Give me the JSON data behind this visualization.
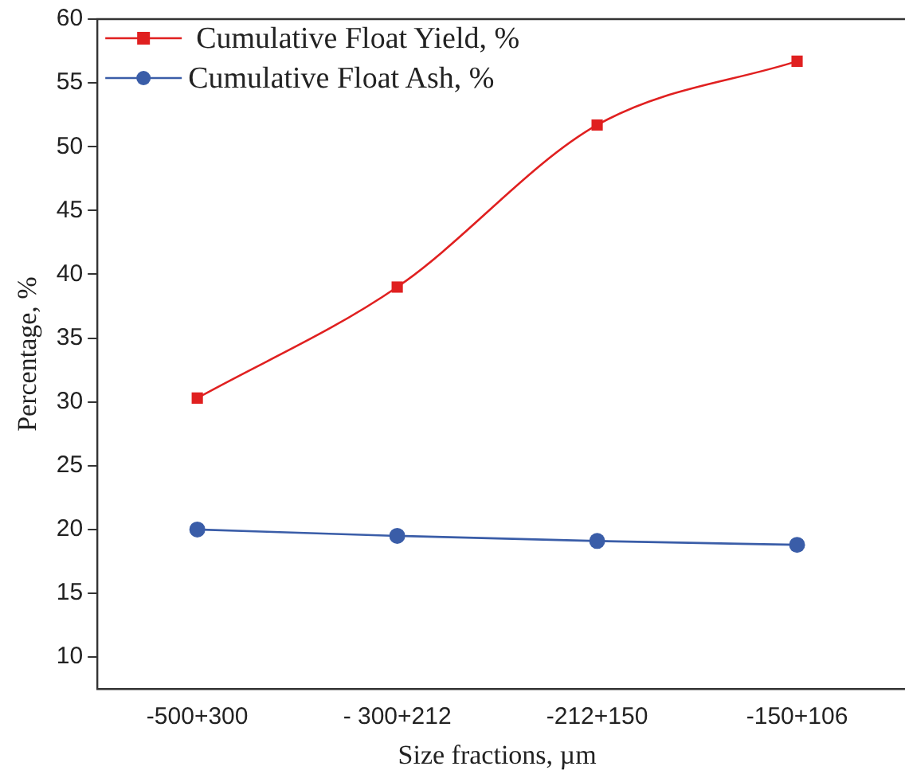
{
  "chart_data": {
    "type": "line",
    "xlabel": "Size fractions, µm",
    "ylabel": "Percentage, %",
    "categories": [
      "-500+300",
      "- 300+212",
      "-212+150",
      "-150+106"
    ],
    "series": [
      {
        "name": "Cumulative Float Yield, %",
        "color": "#e02020",
        "marker": "square",
        "values": [
          30.3,
          39.0,
          51.7,
          56.7
        ]
      },
      {
        "name": "Cumulative Float Ash, %",
        "color": "#3a5da8",
        "marker": "circle",
        "values": [
          20.0,
          19.5,
          19.1,
          18.8
        ]
      }
    ],
    "ylim": [
      7.5,
      60
    ],
    "yticks": [
      10,
      15,
      20,
      25,
      30,
      35,
      40,
      45,
      50,
      55,
      60
    ],
    "grid": false,
    "legend": "top left"
  }
}
